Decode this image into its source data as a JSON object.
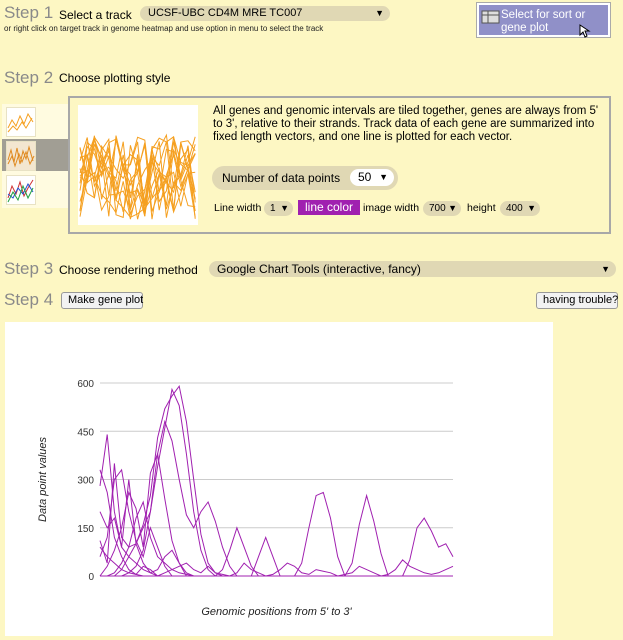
{
  "step1": {
    "num": "Step 1",
    "label": "Select a track",
    "track_value": "UCSF-UBC CD4M MRE TC007",
    "hint": "or right click on target track in genome heatmap and use option in menu to select the track",
    "select_button": "Select for sort or gene plot"
  },
  "step2": {
    "num": "Step 2",
    "label": "Choose plotting style",
    "description": "All genes and genomic intervals are tiled together, genes are always from 5' to 3', relative to their strands. Track data of each gene are summarized into fixed length vectors, and one line is plotted for each vector.",
    "datapoints_label": "Number of data points",
    "datapoints_value": "50",
    "line_width_label": "Line width",
    "line_width_value": "1",
    "line_color_label": "line color",
    "image_width_label": "image width",
    "image_width_value": "700",
    "height_label": "height",
    "height_value": "400",
    "accent": "#a020b0",
    "preview_color": "#f5a020"
  },
  "step3": {
    "num": "Step 3",
    "label": "Choose rendering method",
    "method_value": "Google Chart Tools (interactive, fancy)"
  },
  "step4": {
    "num": "Step 4",
    "make_plot": "Make gene plot",
    "trouble": "having trouble?"
  },
  "chart_data": {
    "type": "line",
    "xlabel": "Genomic positions from 5' to 3'",
    "ylabel": "Data point values",
    "ylim": [
      0,
      600
    ],
    "yticks": [
      "0",
      "150",
      "300",
      "450",
      "600"
    ],
    "x": [
      1,
      2,
      3,
      4,
      5,
      6,
      7,
      8,
      9,
      10,
      11,
      12,
      13,
      14,
      15,
      16,
      17,
      18,
      19,
      20,
      21,
      22,
      23,
      24,
      25,
      26,
      27,
      28,
      29,
      30,
      31,
      32,
      33,
      34,
      35,
      36,
      37,
      38,
      39,
      40,
      41,
      42,
      43,
      44,
      45,
      46,
      47,
      48,
      49,
      50
    ],
    "line_color": "#a020b0",
    "series": [
      {
        "values": [
          110,
          40,
          350,
          120,
          90,
          180,
          230,
          120,
          60,
          40,
          20,
          10,
          5,
          0,
          0,
          0,
          0,
          0,
          0,
          0,
          0,
          0,
          0,
          0,
          0,
          0,
          0,
          0,
          0,
          0,
          0,
          0,
          0,
          0,
          0,
          0,
          0,
          0,
          0,
          0,
          0,
          0,
          0,
          0,
          0,
          0,
          0,
          0,
          0,
          0
        ]
      },
      {
        "values": [
          280,
          440,
          200,
          90,
          300,
          100,
          40,
          10,
          0,
          0,
          0,
          0,
          0,
          0,
          0,
          0,
          0,
          0,
          0,
          0,
          0,
          0,
          0,
          0,
          0,
          0,
          0,
          0,
          0,
          0,
          0,
          0,
          0,
          0,
          0,
          0,
          0,
          0,
          0,
          0,
          0,
          0,
          0,
          0,
          0,
          0,
          0,
          0,
          0,
          0
        ]
      },
      {
        "values": [
          60,
          120,
          300,
          330,
          200,
          110,
          60,
          150,
          90,
          30,
          0,
          0,
          0,
          0,
          0,
          0,
          0,
          0,
          0,
          0,
          0,
          0,
          0,
          0,
          0,
          0,
          0,
          0,
          0,
          0,
          0,
          0,
          0,
          0,
          0,
          0,
          0,
          0,
          0,
          0,
          0,
          0,
          0,
          0,
          0,
          0,
          0,
          0,
          0,
          0
        ]
      },
      {
        "values": [
          0,
          30,
          80,
          150,
          260,
          210,
          90,
          320,
          380,
          240,
          110,
          40,
          0,
          0,
          0,
          0,
          0,
          0,
          0,
          0,
          0,
          0,
          0,
          0,
          0,
          0,
          0,
          0,
          0,
          0,
          0,
          0,
          0,
          0,
          0,
          0,
          0,
          0,
          0,
          0,
          0,
          0,
          0,
          0,
          0,
          0,
          0,
          0,
          0,
          0
        ]
      },
      {
        "values": [
          0,
          0,
          10,
          40,
          90,
          100,
          150,
          200,
          340,
          460,
          580,
          530,
          380,
          200,
          80,
          20,
          0,
          0,
          0,
          0,
          0,
          0,
          0,
          0,
          0,
          0,
          0,
          0,
          0,
          0,
          0,
          0,
          0,
          0,
          0,
          0,
          0,
          0,
          0,
          0,
          0,
          0,
          0,
          0,
          0,
          0,
          0,
          0,
          0,
          0
        ]
      },
      {
        "values": [
          0,
          0,
          0,
          20,
          60,
          100,
          160,
          250,
          430,
          520,
          560,
          590,
          480,
          300,
          130,
          40,
          10,
          0,
          0,
          0,
          0,
          0,
          0,
          0,
          0,
          0,
          0,
          0,
          0,
          0,
          0,
          0,
          0,
          0,
          0,
          0,
          0,
          0,
          0,
          0,
          0,
          0,
          0,
          0,
          0,
          0,
          0,
          0,
          0,
          0
        ]
      },
      {
        "values": [
          0,
          0,
          0,
          0,
          10,
          30,
          80,
          200,
          380,
          480,
          420,
          300,
          190,
          150,
          200,
          230,
          170,
          90,
          30,
          0,
          0,
          0,
          0,
          0,
          0,
          0,
          0,
          0,
          0,
          0,
          0,
          0,
          0,
          0,
          0,
          0,
          0,
          0,
          0,
          0,
          0,
          0,
          0,
          0,
          0,
          0,
          0,
          0,
          0,
          0
        ]
      },
      {
        "values": [
          0,
          0,
          0,
          0,
          0,
          0,
          0,
          0,
          0,
          0,
          0,
          0,
          0,
          0,
          0,
          0,
          0,
          20,
          80,
          150,
          90,
          30,
          0,
          0,
          0,
          0,
          0,
          0,
          0,
          0,
          0,
          0,
          0,
          0,
          0,
          0,
          0,
          0,
          0,
          0,
          0,
          0,
          0,
          0,
          0,
          0,
          0,
          0,
          0,
          0
        ]
      },
      {
        "values": [
          0,
          0,
          0,
          0,
          0,
          0,
          0,
          0,
          0,
          0,
          0,
          0,
          0,
          0,
          0,
          0,
          0,
          0,
          0,
          0,
          0,
          0,
          0,
          0,
          0,
          0,
          0,
          0,
          40,
          150,
          250,
          260,
          180,
          60,
          0,
          0,
          0,
          0,
          0,
          0,
          0,
          0,
          0,
          0,
          0,
          0,
          0,
          0,
          0,
          0
        ]
      },
      {
        "values": [
          0,
          0,
          0,
          0,
          0,
          0,
          0,
          0,
          0,
          0,
          0,
          0,
          0,
          0,
          0,
          0,
          0,
          0,
          0,
          0,
          0,
          0,
          0,
          0,
          0,
          0,
          0,
          0,
          0,
          0,
          0,
          0,
          0,
          0,
          0,
          40,
          160,
          250,
          170,
          70,
          0,
          0,
          0,
          0,
          0,
          0,
          0,
          0,
          0,
          0
        ]
      },
      {
        "values": [
          0,
          0,
          0,
          0,
          0,
          0,
          0,
          0,
          0,
          0,
          0,
          0,
          0,
          0,
          0,
          0,
          0,
          0,
          0,
          0,
          0,
          0,
          0,
          0,
          0,
          0,
          0,
          0,
          0,
          0,
          0,
          0,
          0,
          0,
          0,
          0,
          0,
          0,
          0,
          0,
          0,
          0,
          0,
          50,
          150,
          180,
          140,
          90,
          100,
          60
        ]
      },
      {
        "values": [
          0,
          0,
          0,
          0,
          0,
          0,
          0,
          0,
          0,
          0,
          0,
          0,
          0,
          0,
          0,
          0,
          0,
          0,
          0,
          0,
          0,
          0,
          60,
          120,
          60,
          0,
          0,
          0,
          0,
          0,
          0,
          0,
          0,
          0,
          0,
          0,
          0,
          0,
          0,
          0,
          0,
          0,
          0,
          0,
          0,
          0,
          0,
          0,
          0,
          0
        ]
      },
      {
        "values": [
          90,
          60,
          40,
          20,
          10,
          5,
          30,
          20,
          0,
          10,
          20,
          30,
          40,
          20,
          10,
          30,
          10,
          5,
          0,
          10,
          40,
          20,
          10,
          0,
          5,
          20,
          40,
          30,
          10,
          5,
          20,
          15,
          10,
          0,
          5,
          10,
          30,
          20,
          10,
          0,
          5,
          20,
          50,
          30,
          20,
          10,
          5,
          10,
          20,
          30
        ]
      },
      {
        "values": [
          200,
          150,
          180,
          90,
          60,
          40,
          20,
          10,
          20,
          60,
          80,
          40,
          10,
          0,
          0,
          0,
          0,
          0,
          0,
          0,
          0,
          0,
          0,
          0,
          0,
          0,
          0,
          0,
          0,
          0,
          0,
          0,
          0,
          0,
          0,
          0,
          0,
          0,
          0,
          0,
          0,
          0,
          0,
          0,
          0,
          0,
          0,
          0,
          0,
          0
        ]
      },
      {
        "values": [
          330,
          260,
          120,
          60,
          20,
          5,
          0,
          0,
          0,
          0,
          0,
          0,
          0,
          0,
          0,
          0,
          0,
          0,
          0,
          0,
          0,
          0,
          0,
          0,
          0,
          0,
          0,
          0,
          0,
          0,
          0,
          0,
          0,
          0,
          0,
          0,
          0,
          0,
          0,
          0,
          0,
          0,
          0,
          0,
          0,
          0,
          0,
          0,
          0,
          0
        ]
      }
    ]
  }
}
